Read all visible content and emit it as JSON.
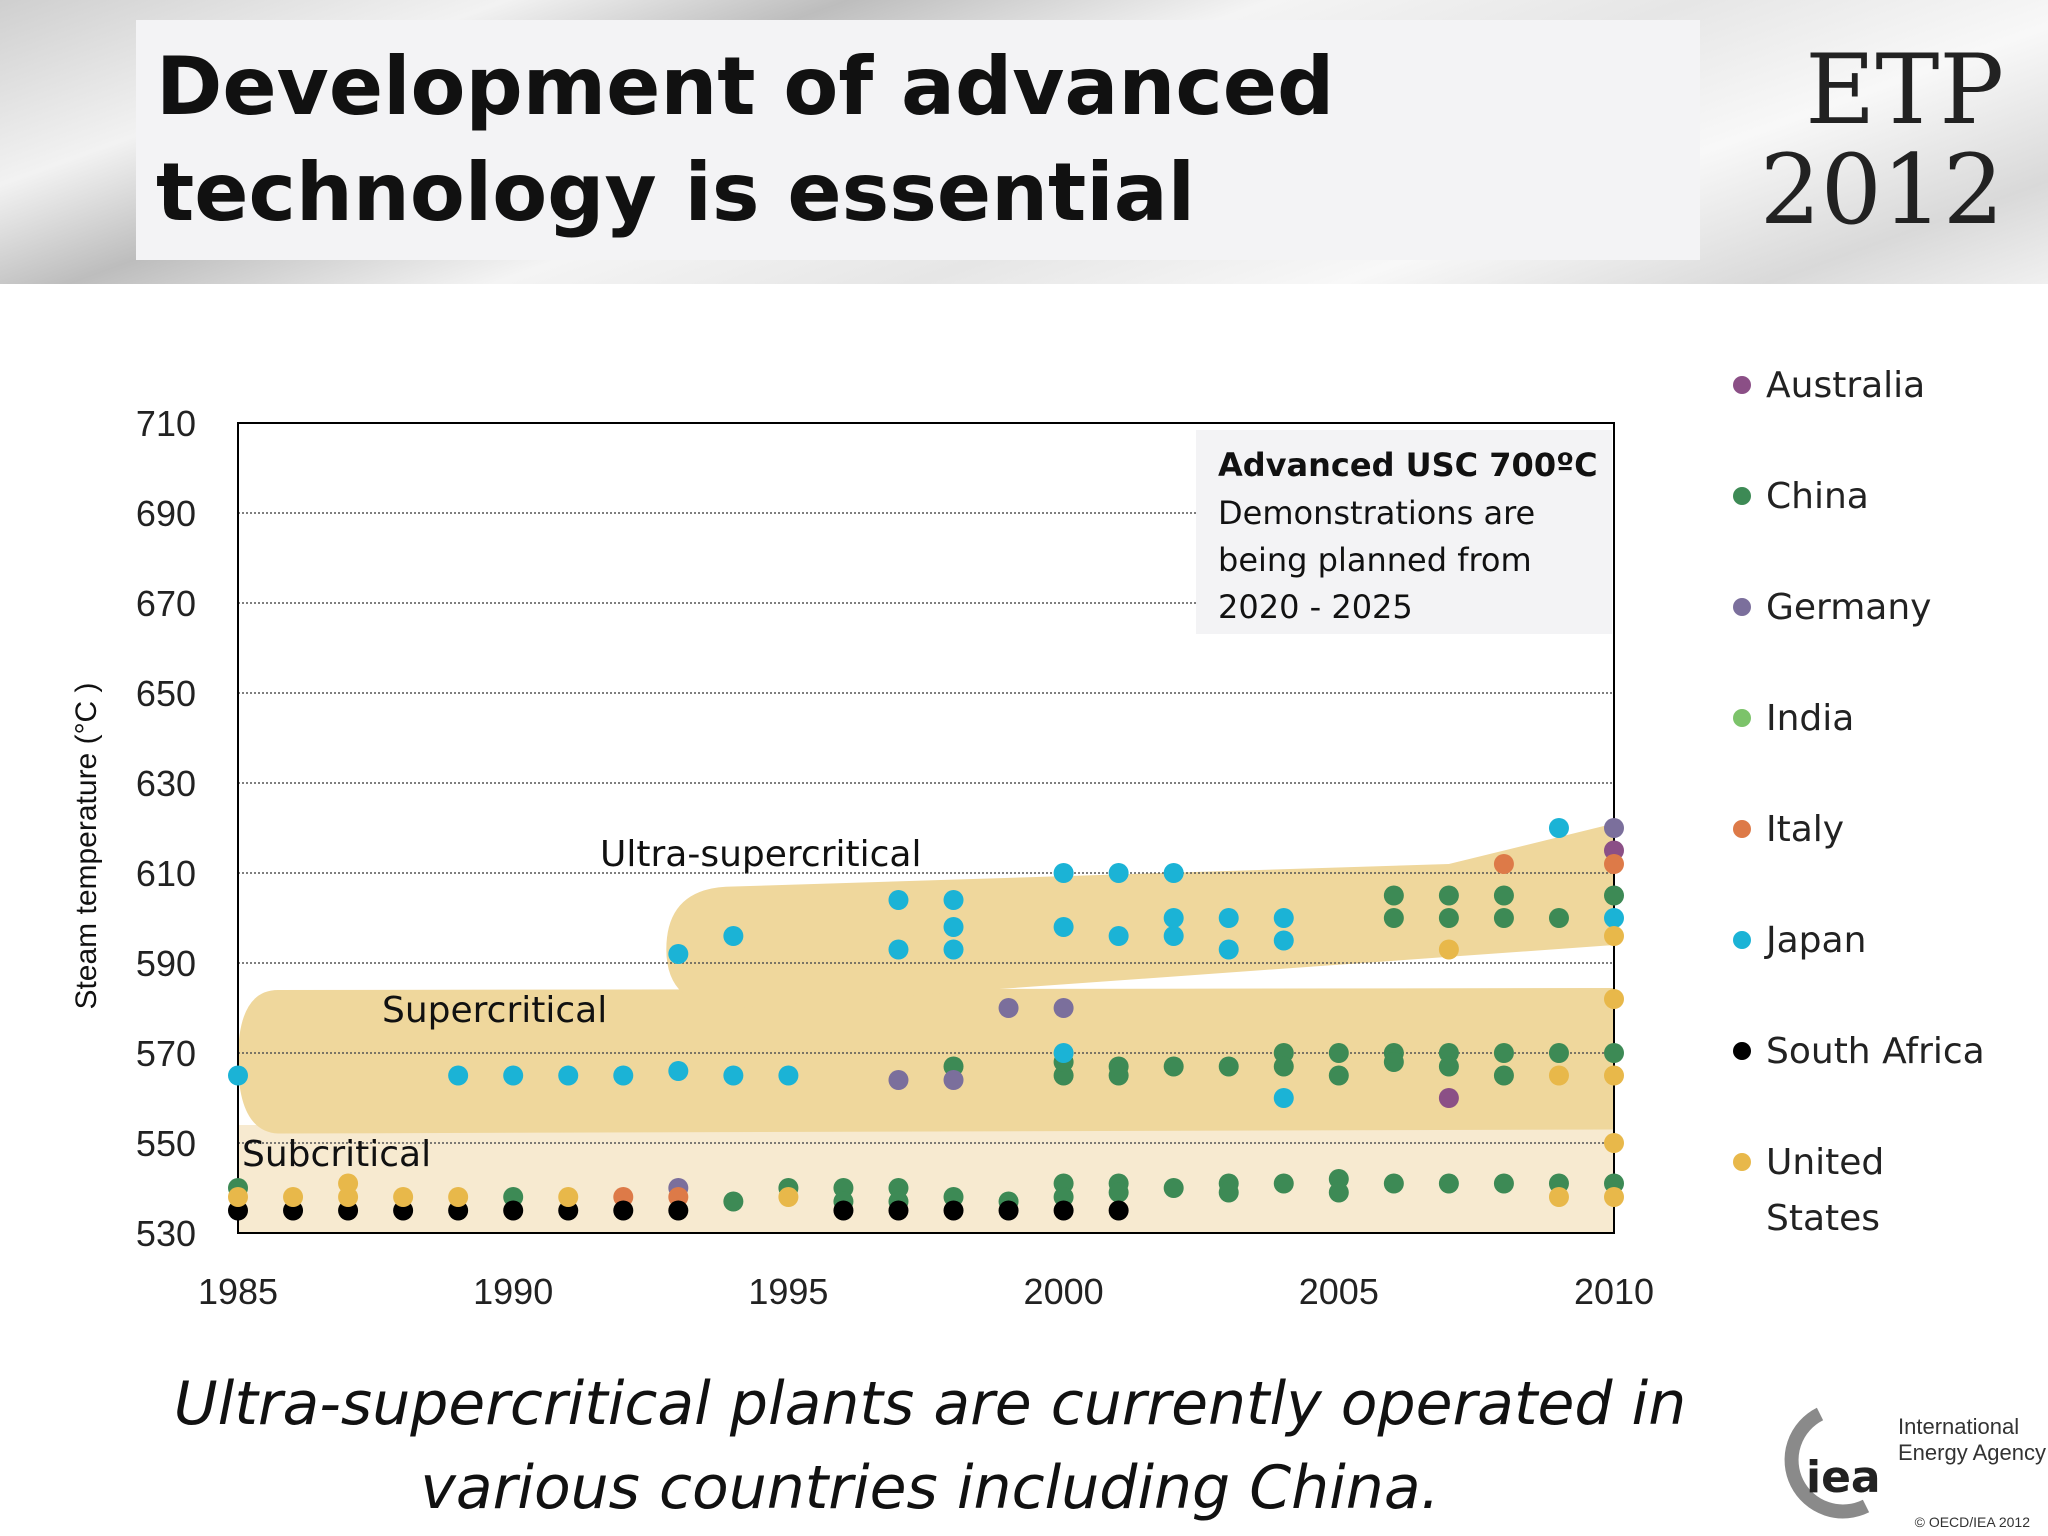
{
  "slide": {
    "title": "Development of advanced technology is essential",
    "badge_line1": "ETP",
    "badge_line2": "2012",
    "caption": "Ultra-supercritical plants are currently operated in various countries including China.",
    "logo_text": "iea",
    "logo_org_line1": "International",
    "logo_org_line2": "Energy Agency",
    "footer": "© OECD/IEA 2012"
  },
  "chart_data": {
    "type": "scatter",
    "title": "",
    "ylabel": "Steam temperature (°C )",
    "xlabel": "",
    "xlim": [
      1985,
      2010
    ],
    "ylim": [
      530,
      710
    ],
    "x_ticks": [
      1985,
      1990,
      1995,
      2000,
      2005,
      2010
    ],
    "y_ticks": [
      530,
      550,
      570,
      590,
      610,
      630,
      650,
      670,
      690,
      710
    ],
    "grid": "horizontal dotted",
    "legend_position": "right",
    "annotation": {
      "heading": "Advanced USC 700ºC",
      "lines": [
        "Demonstrations are",
        "being planned from",
        "2020 - 2025"
      ]
    },
    "region_labels": {
      "usc": "Ultra-supercritical",
      "sc": "Supercritical",
      "sub": "Subcritical"
    },
    "colors": {
      "Australia": "#8b4f86",
      "China": "#3d8a55",
      "Germany": "#7b6f9c",
      "India": "#7cc36a",
      "Italy": "#dd7a48",
      "Japan": "#1bb3d6",
      "South Africa": "#000000",
      "United States": "#e8b84a",
      "band": "#efd79c",
      "sub_band": "#f7ead0"
    },
    "series": [
      {
        "name": "Australia",
        "points": [
          [
            2007,
            560
          ],
          [
            2010,
            615
          ]
        ]
      },
      {
        "name": "China",
        "points": [
          [
            1985,
            540
          ],
          [
            1990,
            538
          ],
          [
            1994,
            537
          ],
          [
            1995,
            540
          ],
          [
            1996,
            540
          ],
          [
            1996,
            537
          ],
          [
            1997,
            540
          ],
          [
            1997,
            537
          ],
          [
            1998,
            538
          ],
          [
            1998,
            567
          ],
          [
            1999,
            537
          ],
          [
            2000,
            541
          ],
          [
            2000,
            538
          ],
          [
            2000,
            565
          ],
          [
            2000,
            568
          ],
          [
            2001,
            541
          ],
          [
            2001,
            539
          ],
          [
            2001,
            565
          ],
          [
            2001,
            567
          ],
          [
            2002,
            540
          ],
          [
            2002,
            567
          ],
          [
            2003,
            541
          ],
          [
            2003,
            539
          ],
          [
            2003,
            567
          ],
          [
            2004,
            541
          ],
          [
            2004,
            570
          ],
          [
            2004,
            567
          ],
          [
            2005,
            542
          ],
          [
            2005,
            539
          ],
          [
            2005,
            570
          ],
          [
            2005,
            565
          ],
          [
            2006,
            541
          ],
          [
            2006,
            570
          ],
          [
            2006,
            568
          ],
          [
            2006,
            600
          ],
          [
            2006,
            605
          ],
          [
            2007,
            541
          ],
          [
            2007,
            570
          ],
          [
            2007,
            567
          ],
          [
            2007,
            600
          ],
          [
            2007,
            605
          ],
          [
            2008,
            541
          ],
          [
            2008,
            570
          ],
          [
            2008,
            565
          ],
          [
            2008,
            600
          ],
          [
            2008,
            605
          ],
          [
            2009,
            541
          ],
          [
            2009,
            570
          ],
          [
            2009,
            600
          ],
          [
            2010,
            541
          ],
          [
            2010,
            570
          ],
          [
            2010,
            605
          ]
        ]
      },
      {
        "name": "Germany",
        "points": [
          [
            1993,
            540
          ],
          [
            1997,
            564
          ],
          [
            1998,
            564
          ],
          [
            1999,
            580
          ],
          [
            2000,
            580
          ],
          [
            2010,
            620
          ]
        ]
      },
      {
        "name": "India",
        "points": []
      },
      {
        "name": "Italy",
        "points": [
          [
            1992,
            538
          ],
          [
            1993,
            538
          ],
          [
            2008,
            612
          ],
          [
            2010,
            612
          ]
        ]
      },
      {
        "name": "Japan",
        "points": [
          [
            1985,
            565
          ],
          [
            1989,
            565
          ],
          [
            1990,
            565
          ],
          [
            1991,
            565
          ],
          [
            1992,
            565
          ],
          [
            1993,
            566
          ],
          [
            1993,
            592
          ],
          [
            1994,
            565
          ],
          [
            1994,
            596
          ],
          [
            1995,
            565
          ],
          [
            1997,
            593
          ],
          [
            1997,
            604
          ],
          [
            1998,
            593
          ],
          [
            1998,
            598
          ],
          [
            1998,
            604
          ],
          [
            2000,
            570
          ],
          [
            2000,
            598
          ],
          [
            2000,
            610
          ],
          [
            2001,
            596
          ],
          [
            2001,
            610
          ],
          [
            2002,
            596
          ],
          [
            2002,
            600
          ],
          [
            2002,
            610
          ],
          [
            2003,
            593
          ],
          [
            2003,
            600
          ],
          [
            2004,
            560
          ],
          [
            2004,
            595
          ],
          [
            2004,
            600
          ],
          [
            2009,
            620
          ],
          [
            2010,
            600
          ]
        ]
      },
      {
        "name": "South Africa",
        "points": [
          [
            1985,
            535
          ],
          [
            1986,
            535
          ],
          [
            1987,
            535
          ],
          [
            1988,
            535
          ],
          [
            1989,
            535
          ],
          [
            1990,
            535
          ],
          [
            1991,
            535
          ],
          [
            1992,
            535
          ],
          [
            1993,
            535
          ],
          [
            1996,
            535
          ],
          [
            1997,
            535
          ],
          [
            1998,
            535
          ],
          [
            1999,
            535
          ],
          [
            2000,
            535
          ],
          [
            2001,
            535
          ]
        ]
      },
      {
        "name": "United States",
        "points": [
          [
            1985,
            538
          ],
          [
            1986,
            538
          ],
          [
            1987,
            541
          ],
          [
            1987,
            538
          ],
          [
            1988,
            538
          ],
          [
            1989,
            538
          ],
          [
            1991,
            538
          ],
          [
            1995,
            538
          ],
          [
            2007,
            593
          ],
          [
            2009,
            538
          ],
          [
            2009,
            565
          ],
          [
            2010,
            538
          ],
          [
            2010,
            550
          ],
          [
            2010,
            565
          ],
          [
            2010,
            582
          ],
          [
            2010,
            596
          ]
        ]
      }
    ],
    "legend": [
      {
        "label": "Australia"
      },
      {
        "label": "China"
      },
      {
        "label": "Germany"
      },
      {
        "label": "India"
      },
      {
        "label": "Italy"
      },
      {
        "label": "Japan"
      },
      {
        "label": "South Africa"
      },
      {
        "label": "United",
        "label2": "States"
      }
    ]
  }
}
